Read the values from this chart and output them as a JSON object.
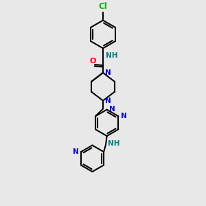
{
  "bg_color": "#e8e8e8",
  "bond_color": "#000000",
  "N_color": "#0000ff",
  "O_color": "#ff0000",
  "Cl_color": "#00bb00",
  "NH_color": "#008080",
  "lw": 1.5,
  "fs": 7.5,
  "fig_w": 3.0,
  "fig_h": 3.0,
  "dpi": 100,
  "xlim": [
    0,
    6
  ],
  "ylim": [
    0,
    10
  ]
}
